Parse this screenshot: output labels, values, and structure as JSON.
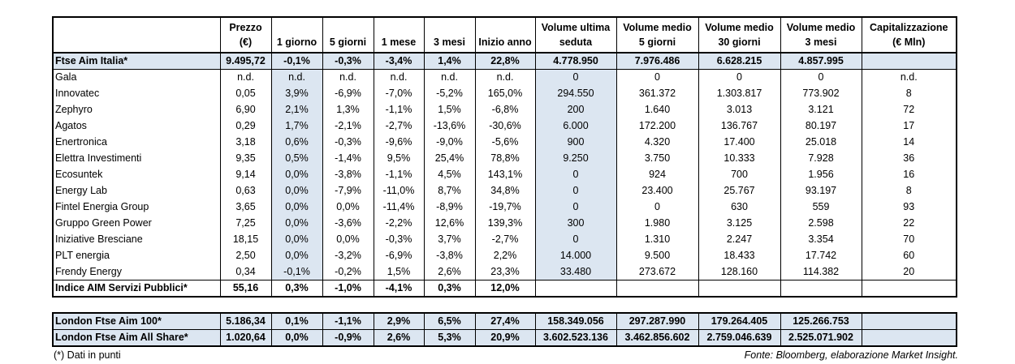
{
  "headers": [
    "",
    "Prezzo\n(€)",
    "1 giorno",
    "5 giorni",
    "1 mese",
    "3 mesi",
    "Inizio anno",
    "Volume ultima\nseduta",
    "Volume medio\n5 giorni",
    "Volume medio\n30 giorni",
    "Volume medio\n3 mesi",
    "Capitalizzazione\n(€ Mln)"
  ],
  "index_row": [
    "Ftse Aim Italia*",
    "9.495,72",
    "-0,1%",
    "-0,3%",
    "-3,4%",
    "1,4%",
    "22,8%",
    "4.778.950",
    "7.976.486",
    "6.628.215",
    "4.857.995",
    ""
  ],
  "rows": [
    [
      "Gala",
      "n.d.",
      "n.d.",
      "n.d.",
      "n.d.",
      "n.d.",
      "n.d.",
      "0",
      "0",
      "0",
      "0",
      "n.d."
    ],
    [
      "Innovatec",
      "0,05",
      "3,9%",
      "-6,9%",
      "-7,0%",
      "-5,2%",
      "165,0%",
      "294.550",
      "361.372",
      "1.303.817",
      "773.902",
      "8"
    ],
    [
      "Zephyro",
      "6,90",
      "2,1%",
      "1,3%",
      "-1,1%",
      "1,5%",
      "-6,8%",
      "200",
      "1.640",
      "3.013",
      "3.121",
      "72"
    ],
    [
      "Agatos",
      "0,29",
      "1,7%",
      "-2,1%",
      "-2,7%",
      "-13,6%",
      "-30,6%",
      "6.000",
      "172.200",
      "136.767",
      "80.197",
      "17"
    ],
    [
      "Enertronica",
      "3,18",
      "0,6%",
      "-0,3%",
      "-9,6%",
      "-9,0%",
      "-5,6%",
      "900",
      "4.320",
      "17.400",
      "25.018",
      "14"
    ],
    [
      "Elettra Investimenti",
      "9,35",
      "0,5%",
      "-1,4%",
      "9,5%",
      "25,4%",
      "78,8%",
      "9.250",
      "3.750",
      "10.333",
      "7.928",
      "36"
    ],
    [
      "Ecosuntek",
      "9,14",
      "0,0%",
      "-3,8%",
      "-1,1%",
      "4,5%",
      "143,1%",
      "0",
      "924",
      "700",
      "1.956",
      "16"
    ],
    [
      "Energy Lab",
      "0,63",
      "0,0%",
      "-7,9%",
      "-11,0%",
      "8,7%",
      "34,8%",
      "0",
      "23.400",
      "25.767",
      "93.197",
      "8"
    ],
    [
      "Fintel Energia Group",
      "3,65",
      "0,0%",
      "0,0%",
      "-11,4%",
      "-8,9%",
      "-19,7%",
      "0",
      "0",
      "630",
      "559",
      "93"
    ],
    [
      "Gruppo Green Power",
      "7,25",
      "0,0%",
      "-3,6%",
      "-2,2%",
      "12,6%",
      "139,3%",
      "300",
      "1.980",
      "3.125",
      "2.598",
      "22"
    ],
    [
      "Iniziative Bresciane",
      "18,15",
      "0,0%",
      "0,0%",
      "-0,3%",
      "3,7%",
      "-2,7%",
      "0",
      "1.310",
      "2.247",
      "3.354",
      "70"
    ],
    [
      "PLT energia",
      "2,50",
      "0,0%",
      "-3,2%",
      "-6,9%",
      "-3,8%",
      "2,2%",
      "14.000",
      "9.500",
      "18.433",
      "17.742",
      "60"
    ],
    [
      "Frendy Energy",
      "0,34",
      "-0,1%",
      "-0,2%",
      "1,5%",
      "2,6%",
      "23,3%",
      "33.480",
      "273.672",
      "128.160",
      "114.382",
      "20"
    ]
  ],
  "sector_row": [
    "Indice AIM Servizi Pubblici*",
    "55,16",
    "0,3%",
    "-1,0%",
    "-4,1%",
    "0,3%",
    "12,0%",
    "",
    "",
    "",
    "",
    ""
  ],
  "london_rows": [
    [
      "London Ftse Aim 100*",
      "5.186,34",
      "0,1%",
      "-1,1%",
      "2,9%",
      "6,5%",
      "27,4%",
      "158.349.056",
      "297.287.990",
      "179.264.405",
      "125.266.753",
      ""
    ],
    [
      "London Ftse Aim All Share*",
      "1.020,64",
      "0,0%",
      "-0,9%",
      "2,6%",
      "5,3%",
      "20,9%",
      "3.602.523.136",
      "3.462.856.602",
      "2.759.046.639",
      "2.525.071.902",
      ""
    ]
  ],
  "footer": {
    "note": "(*) Dati in punti",
    "source": "Fonte: Bloomberg, elaborazione Market Insight."
  },
  "colors": {
    "shade": "#dce6f1",
    "border": "#000000"
  }
}
